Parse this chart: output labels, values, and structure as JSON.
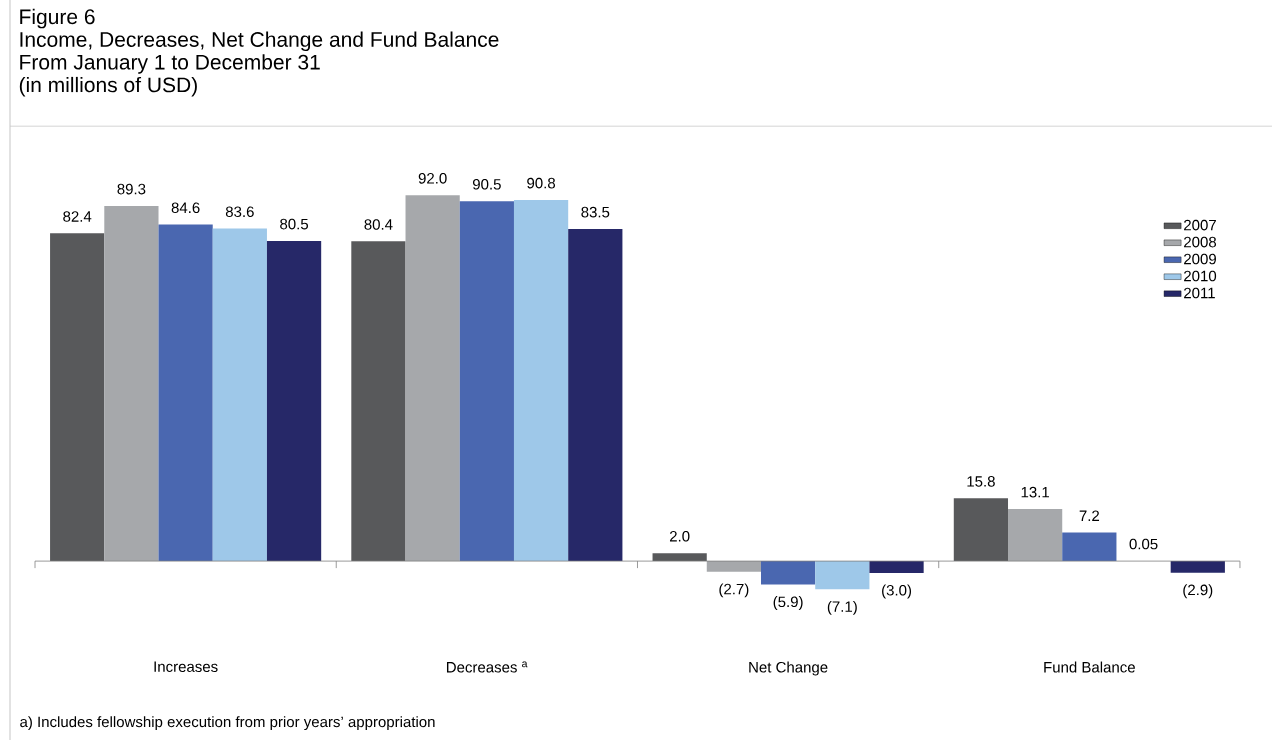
{
  "chart_data": {
    "type": "bar",
    "title": "Figure 6",
    "subtitle": "Income, Decreases, Net Change and Fund Balance",
    "annotations": [
      "From January 1 to December 31",
      "(in millions of USD)",
      "a) Includes fellowship execution from prior years’ appropriation"
    ],
    "categories": [
      "Increases",
      "Decreases $^{a}$",
      "Net Change",
      "Fund Balance"
    ],
    "legend": "right",
    "series": [
      {
        "name": "2007",
        "color": "#58595b",
        "values": [
          82.4,
          80.4,
          2.0,
          15.8
        ],
        "value_labels": [
          "82.4",
          "80.4",
          "2.0",
          "15.8"
        ]
      },
      {
        "name": "2008",
        "color": "#a6a8ab",
        "values": [
          89.3,
          92.0,
          -2.7,
          13.1
        ],
        "value_labels": [
          "89.3",
          "92.0",
          "(2.7)",
          "13.1"
        ]
      },
      {
        "name": "2009",
        "color": "#4a67b0",
        "values": [
          84.6,
          90.5,
          -5.9,
          7.2
        ],
        "value_labels": [
          "84.6",
          "90.5",
          "(5.9)",
          "7.2"
        ]
      },
      {
        "name": "2010",
        "color": "#9ec8e9",
        "values": [
          83.6,
          90.8,
          -7.1,
          0.05
        ],
        "value_labels": [
          "83.6",
          "90.8",
          "(7.1)",
          "0.05"
        ]
      },
      {
        "name": "2011",
        "color": "#262868",
        "values": [
          80.5,
          83.5,
          -3.0,
          -2.9
        ],
        "value_labels": [
          "80.5",
          "83.5",
          "(3.0)",
          "(2.9)"
        ]
      }
    ]
  }
}
